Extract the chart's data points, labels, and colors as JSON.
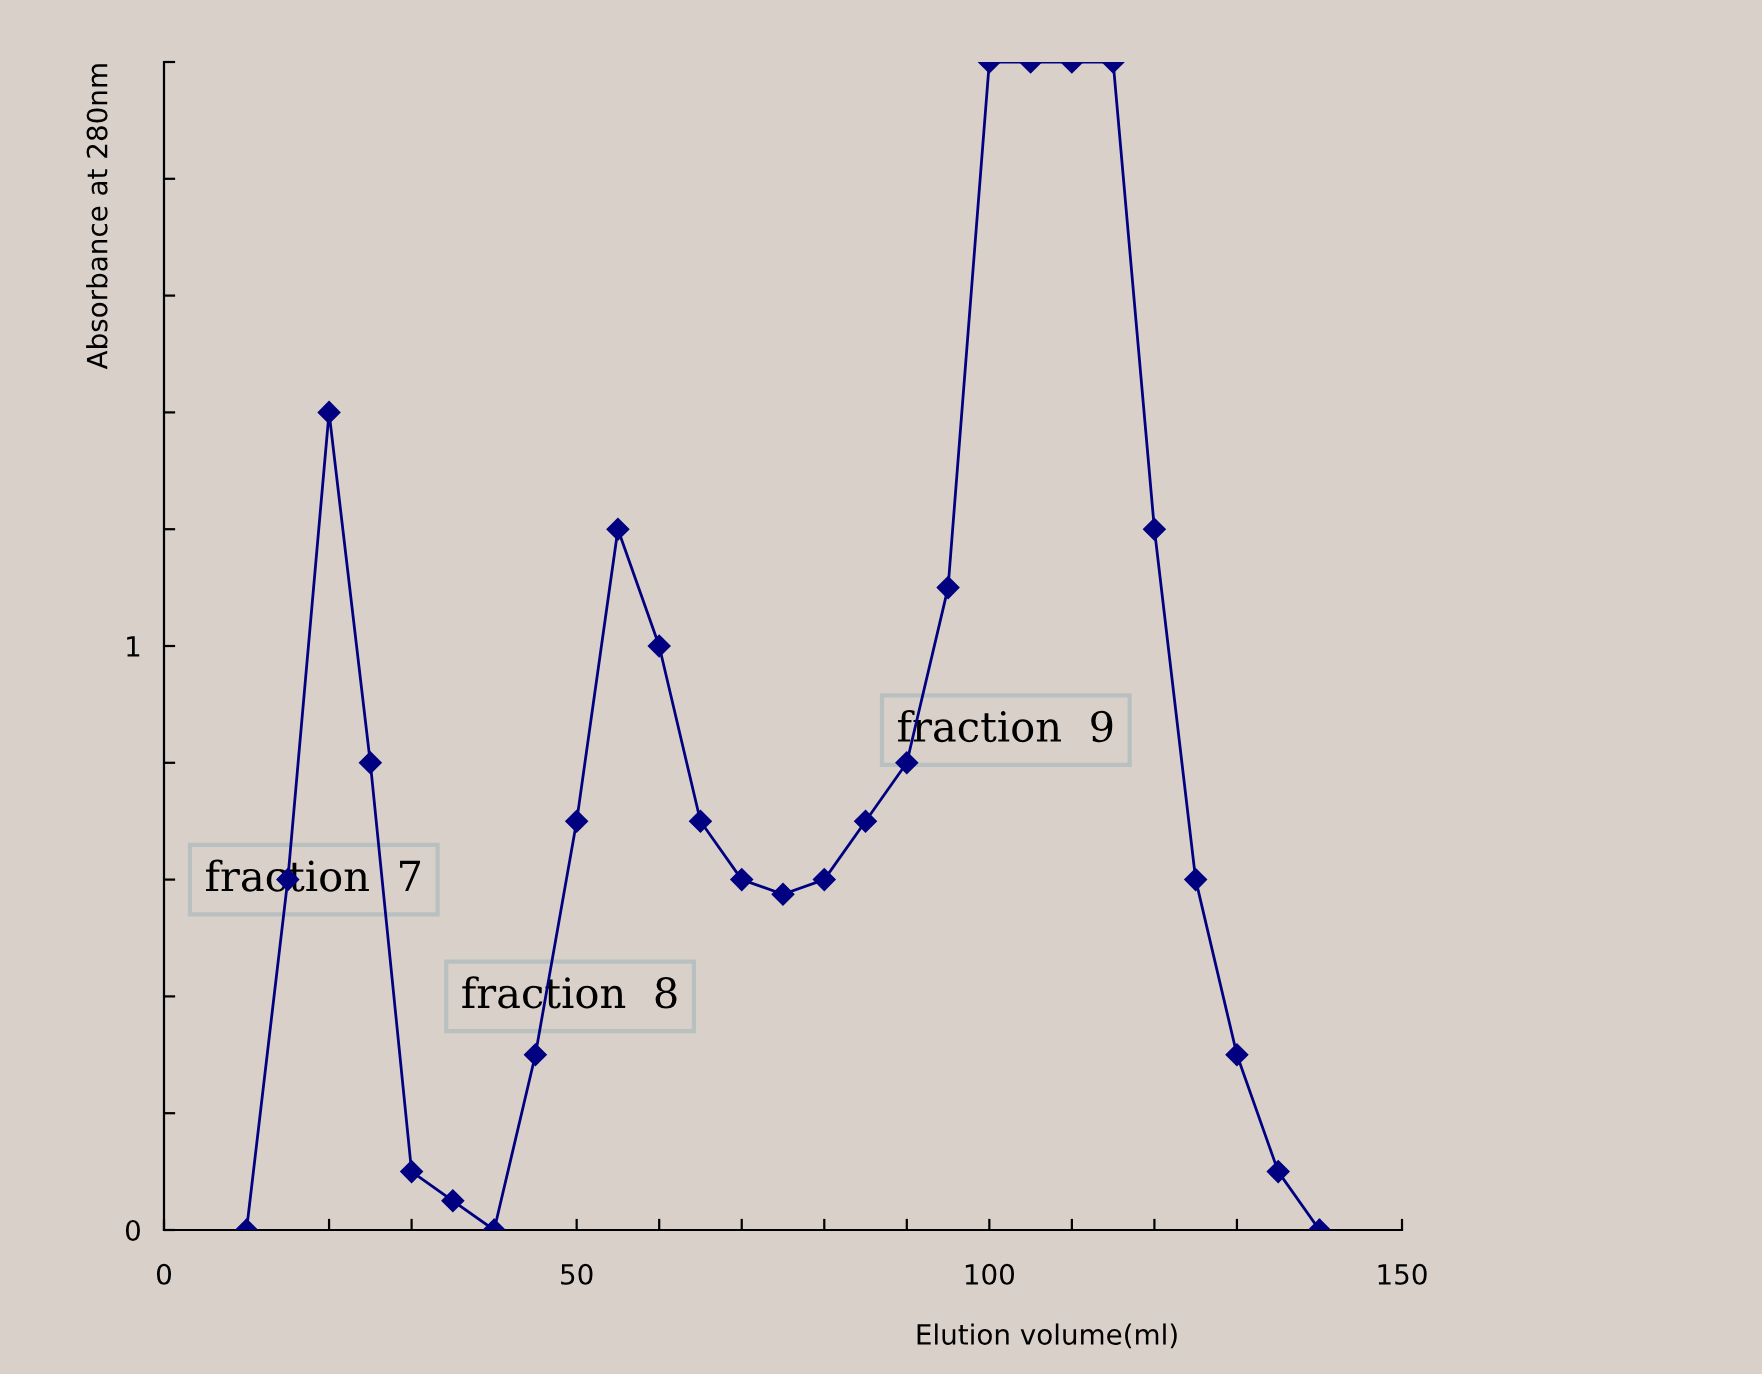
{
  "chart_data": {
    "type": "line",
    "xlabel": "Elution volume(ml)",
    "ylabel": "Absorbance at 280nm",
    "x": [
      10,
      15,
      20,
      25,
      30,
      35,
      40,
      45,
      50,
      55,
      60,
      65,
      70,
      75,
      80,
      85,
      90,
      95,
      100,
      105,
      110,
      115,
      120,
      125,
      130,
      135,
      140
    ],
    "series": [
      {
        "color": "#000080",
        "values": [
          0,
          0.6,
          1.4,
          0.8,
          0.1,
          0.05,
          0,
          0.3,
          0.7,
          1.2,
          1.0,
          0.7,
          0.6,
          0.575,
          0.6,
          0.7,
          0.8,
          1.1,
          2.0,
          2.0,
          2.0,
          2.0,
          1.2,
          0.6,
          0.3,
          0.1,
          0
        ]
      }
    ],
    "marker": "diamond",
    "line_style": "solid",
    "grid": false,
    "legend": false,
    "xlim": [
      0,
      150
    ],
    "xticks": [
      0,
      {
        "value": 10,
        "label": null
      },
      {
        "value": 20,
        "label": null
      },
      {
        "value": 30,
        "label": null
      },
      {
        "value": 40,
        "label": null
      },
      50,
      {
        "value": 60,
        "label": null
      },
      {
        "value": 70,
        "label": null
      },
      {
        "value": 80,
        "label": null
      },
      {
        "value": 90,
        "label": null
      },
      100,
      {
        "value": 110,
        "label": null
      },
      {
        "value": 120,
        "label": null
      },
      {
        "value": 130,
        "label": null
      },
      {
        "value": 140,
        "label": null
      },
      150
    ],
    "ylim": [
      0,
      2
    ],
    "yticks": [
      0,
      {
        "value": 0.2,
        "label": null
      },
      {
        "value": 0.4,
        "label": null
      },
      {
        "value": 0.6,
        "label": null
      },
      {
        "value": 0.8,
        "label": null
      },
      1,
      {
        "value": 1.2,
        "label": null
      },
      {
        "value": 1.4,
        "label": null
      },
      {
        "value": 1.6,
        "label": null
      },
      {
        "value": 1.8,
        "label": null
      },
      {
        "value": 2,
        "label": null
      }
    ],
    "annotations": [
      "fraction  7",
      "fraction  8",
      "fraction  9"
    ]
  }
}
